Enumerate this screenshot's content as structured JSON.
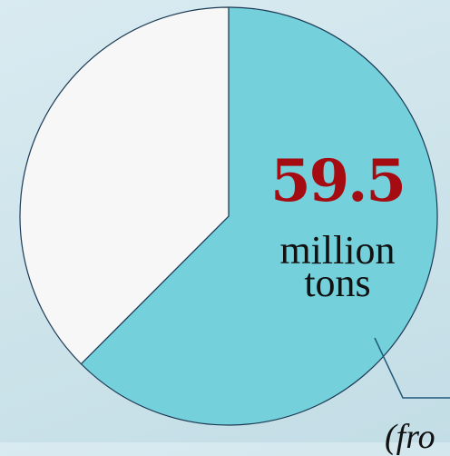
{
  "chart_data": {
    "type": "pie",
    "slices": [
      {
        "value": 0.625,
        "color": "#74d0da",
        "highlighted": true
      },
      {
        "value": 0.375,
        "color": "#f7f7f7",
        "highlighted": false
      }
    ],
    "highlight": {
      "value": "59.5",
      "unit_line1": "million",
      "unit_line2": "tons"
    },
    "callout_text": "(fro"
  },
  "colors": {
    "value_text": "#a50c12",
    "outline": "#1c3a55",
    "leader_line": "#1f5a7a"
  }
}
